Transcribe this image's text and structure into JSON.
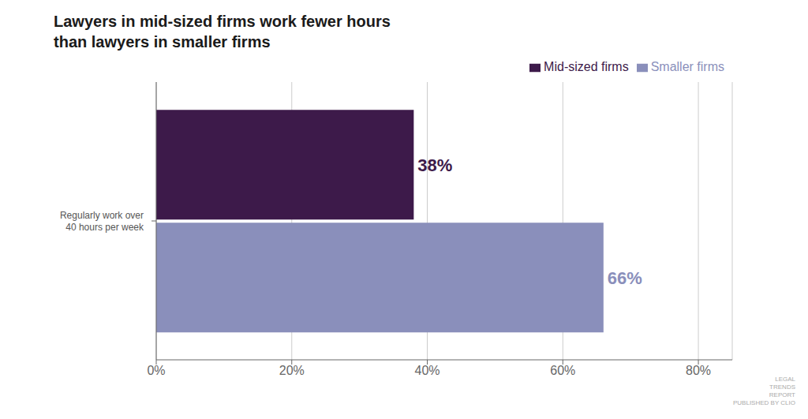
{
  "chart_data": {
    "type": "bar",
    "orientation": "horizontal",
    "title": "Lawyers in mid-sized firms work fewer hours\nthan lawyers in smaller firms",
    "categories": [
      "Regularly work over\n40 hours per week"
    ],
    "series": [
      {
        "name": "Mid-sized firms",
        "color": "#3D1A4A",
        "values": [
          0.38
        ],
        "value_labels": [
          "38%"
        ]
      },
      {
        "name": "Smaller firms",
        "color": "#8A8FBB",
        "values": [
          0.66
        ],
        "value_labels": [
          "66%"
        ]
      }
    ],
    "xlim": [
      0,
      0.85
    ],
    "xticks": [
      {
        "value": 0.0,
        "label": "0%"
      },
      {
        "value": 0.2,
        "label": "20%"
      },
      {
        "value": 0.4,
        "label": "40%"
      },
      {
        "value": 0.6,
        "label": "60%"
      },
      {
        "value": 0.8,
        "label": "80%"
      }
    ],
    "grid": true,
    "legend": "top-right",
    "data_labels": true,
    "annotations": [
      "LEGAL\nTRENDS\nREPORT\nPUBLISHED BY CLIO"
    ]
  }
}
